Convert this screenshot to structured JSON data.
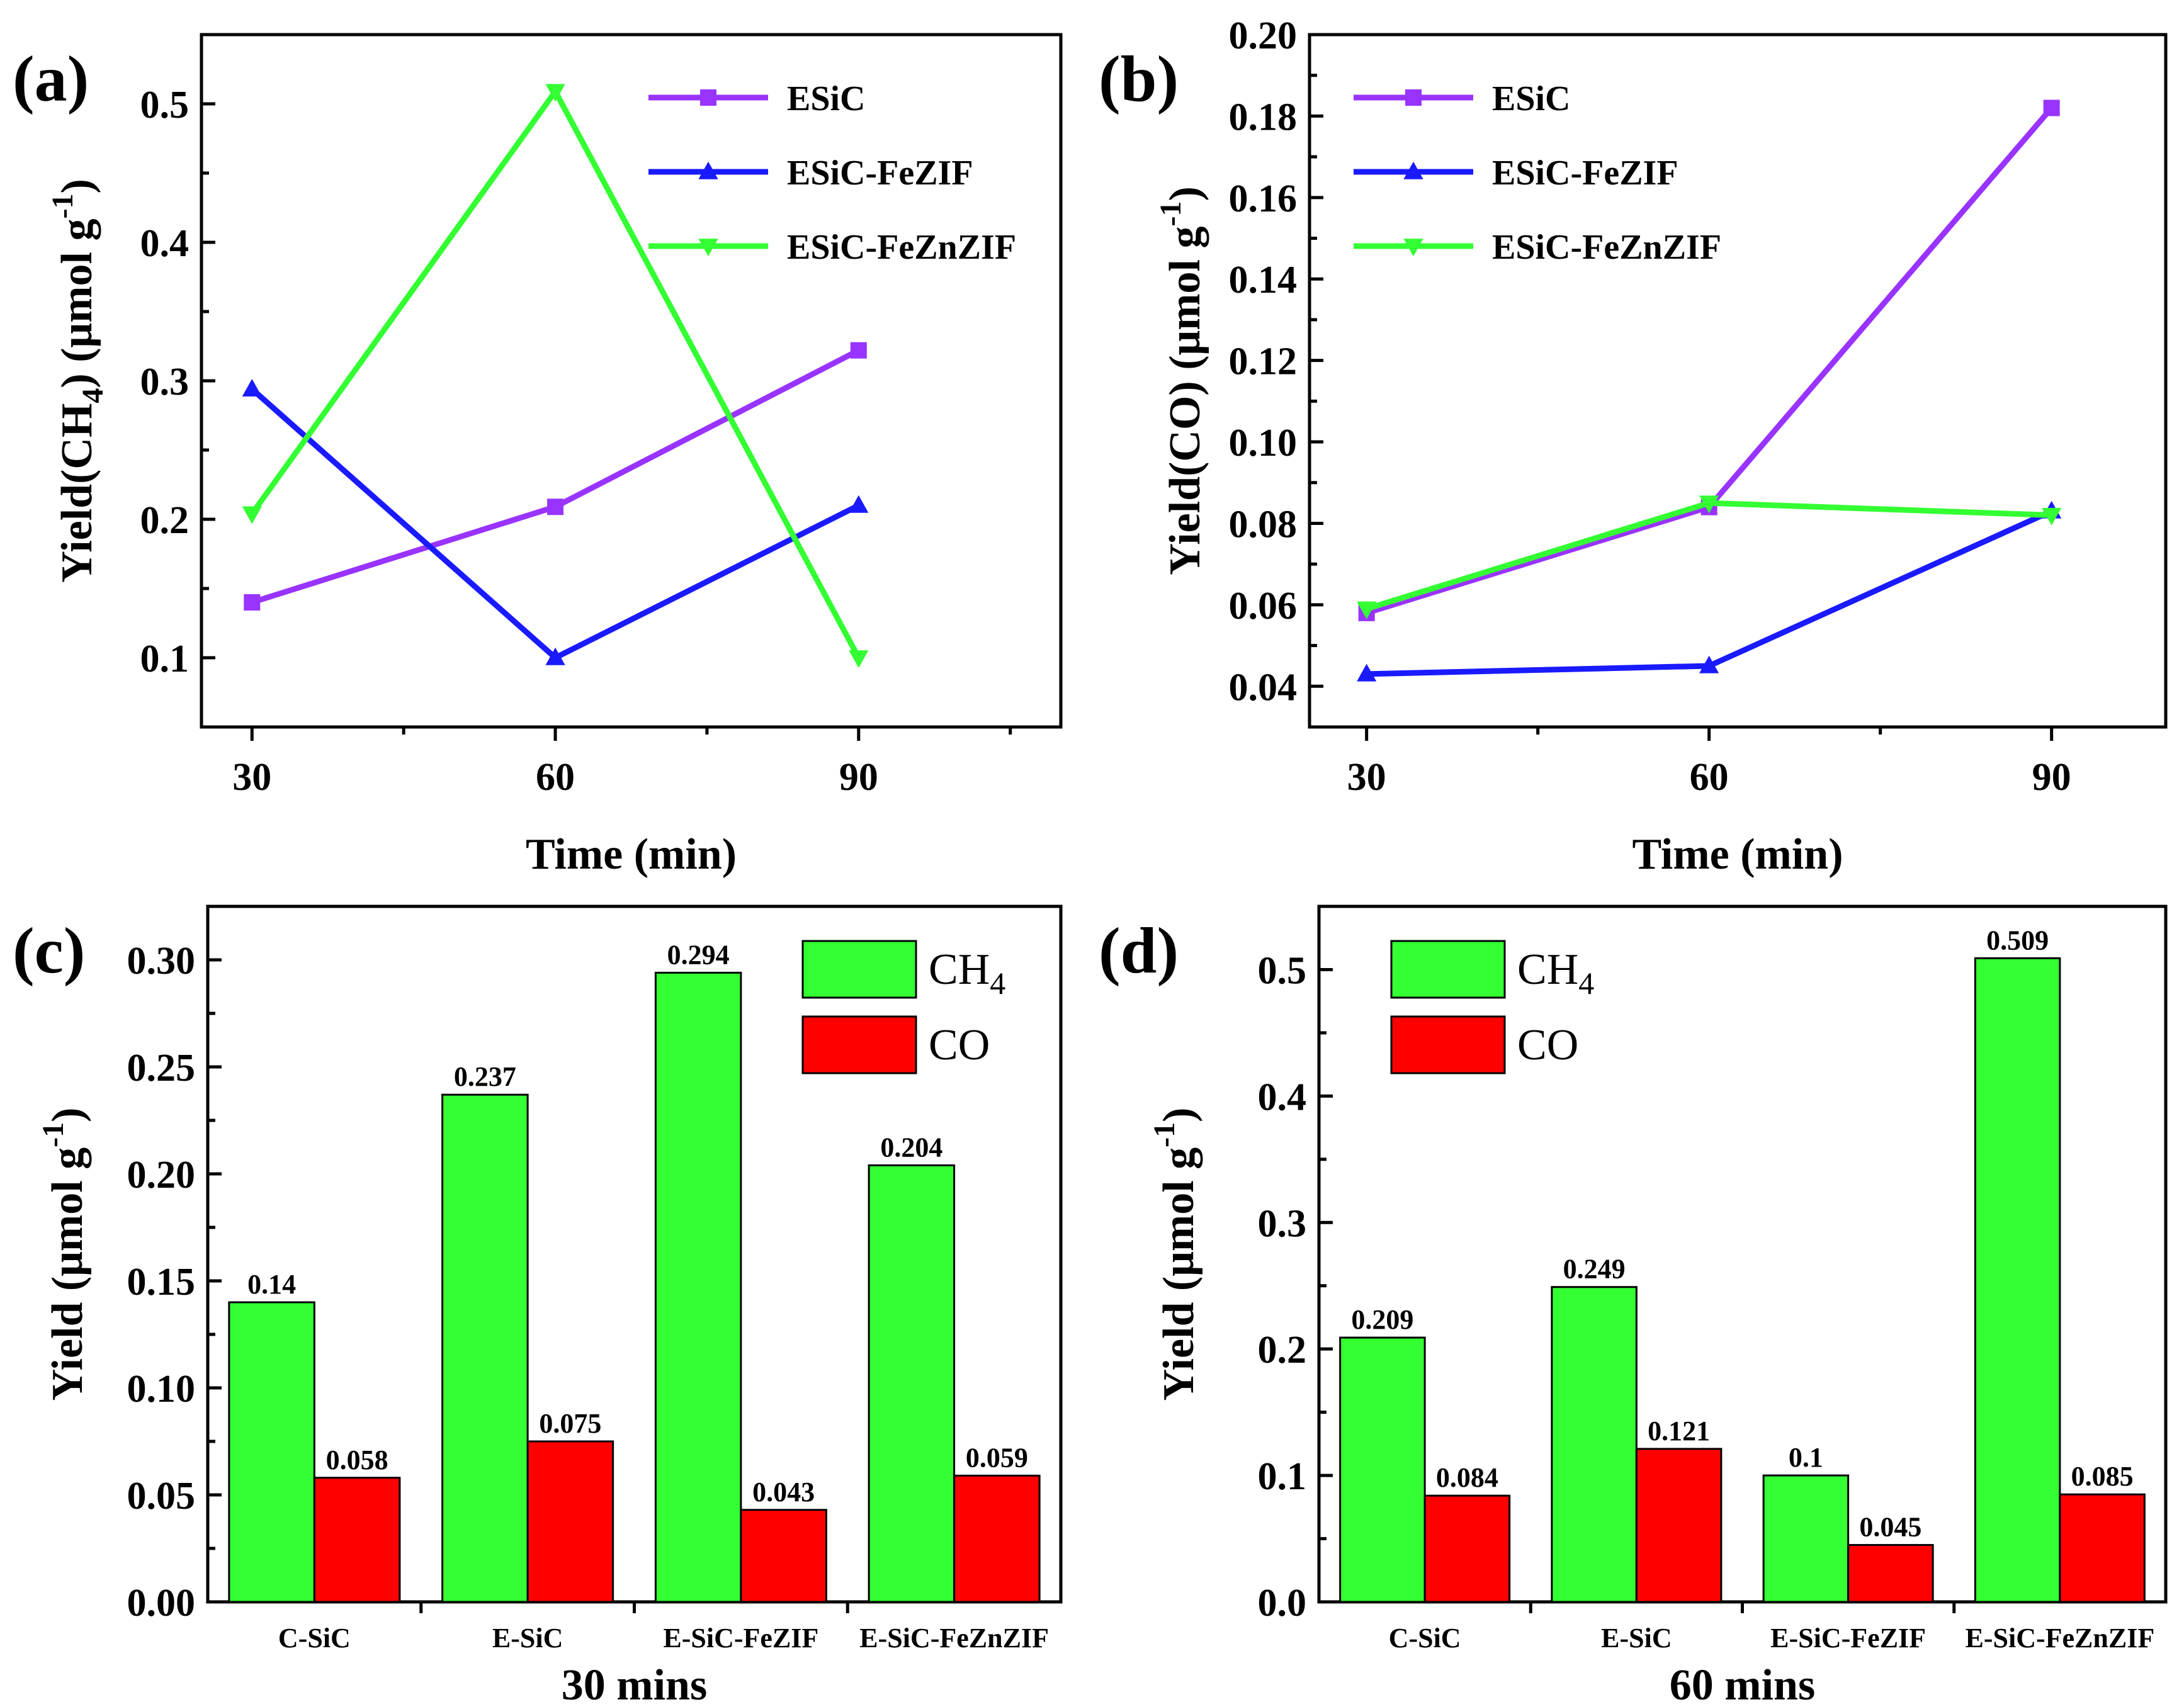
{
  "chart_data": [
    {
      "id": "a",
      "panel_label": "(a)",
      "type": "line",
      "x": [
        30,
        60,
        90
      ],
      "xticks": [
        "30",
        "60",
        "90"
      ],
      "xlim": [
        25,
        110
      ],
      "ylim": [
        0.05,
        0.55
      ],
      "yticks": [
        "0.1",
        "0.2",
        "0.3",
        "0.4",
        "0.5"
      ],
      "ytick_values": [
        0.1,
        0.2,
        0.3,
        0.4,
        0.5
      ],
      "xlabel": "Time (min)",
      "ylabel": {
        "prefix": "Yield(CH",
        "sub": "4",
        "mid": ") (μmol g",
        "sup": "-1",
        "suffix": ")"
      },
      "legend_position": "top-right",
      "series": [
        {
          "name": "ESiC",
          "color": "#9933ff",
          "marker": "square",
          "values": [
            0.14,
            0.209,
            0.322
          ]
        },
        {
          "name": "ESiC-FeZIF",
          "color": "#1a1aff",
          "marker": "triangle-up",
          "values": [
            0.294,
            0.1,
            0.21
          ]
        },
        {
          "name": "ESiC-FeZnZIF",
          "color": "#33ff33",
          "marker": "triangle-down",
          "values": [
            0.204,
            0.509,
            0.1
          ]
        }
      ]
    },
    {
      "id": "b",
      "panel_label": "(b)",
      "type": "line",
      "x": [
        30,
        60,
        90
      ],
      "xticks": [
        "30",
        "60",
        "90"
      ],
      "xlim": [
        25,
        100
      ],
      "ylim": [
        0.03,
        0.2
      ],
      "yticks": [
        "0.04",
        "0.06",
        "0.08",
        "0.10",
        "0.12",
        "0.14",
        "0.16",
        "0.18",
        "0.20"
      ],
      "ytick_values": [
        0.04,
        0.06,
        0.08,
        0.1,
        0.12,
        0.14,
        0.16,
        0.18,
        0.2
      ],
      "xlabel": "Time (min)",
      "ylabel": {
        "prefix": "Yield(CO) (μmol g",
        "sub": "",
        "mid": "",
        "sup": "-1",
        "suffix": ")"
      },
      "legend_position": "top-left",
      "series": [
        {
          "name": "ESiC",
          "color": "#9933ff",
          "marker": "square",
          "values": [
            0.058,
            0.084,
            0.182
          ]
        },
        {
          "name": "ESiC-FeZIF",
          "color": "#1a1aff",
          "marker": "triangle-up",
          "values": [
            0.043,
            0.045,
            0.083
          ]
        },
        {
          "name": "ESiC-FeZnZIF",
          "color": "#33ff33",
          "marker": "triangle-down",
          "values": [
            0.059,
            0.085,
            0.082
          ]
        }
      ]
    },
    {
      "id": "c",
      "panel_label": "(c)",
      "type": "bar",
      "categories": [
        "C-SiC",
        "E-SiC",
        "E-SiC-FeZIF",
        "E-SiC-FeZnZIF"
      ],
      "ylim": [
        0,
        0.325
      ],
      "yticks": [
        "0.00",
        "0.05",
        "0.10",
        "0.15",
        "0.20",
        "0.25",
        "0.30"
      ],
      "ytick_values": [
        0,
        0.05,
        0.1,
        0.15,
        0.2,
        0.25,
        0.3
      ],
      "xlabel": "30 mins",
      "ylabel": {
        "prefix": "Yield (μmol g",
        "sub": "",
        "mid": "",
        "sup": "-1",
        "suffix": ")"
      },
      "legend_position": "top-right",
      "series": [
        {
          "name": "CH",
          "name_sub": "4",
          "color": "#33ff33",
          "values": [
            0.14,
            0.237,
            0.294,
            0.204
          ],
          "labels": [
            "0.14",
            "0.237",
            "0.294",
            "0.204"
          ]
        },
        {
          "name": "CO",
          "name_sub": "",
          "color": "#ff0000",
          "values": [
            0.058,
            0.075,
            0.043,
            0.059
          ],
          "labels": [
            "0.058",
            "0.075",
            "0.043",
            "0.059"
          ]
        }
      ]
    },
    {
      "id": "d",
      "panel_label": "(d)",
      "type": "bar",
      "categories": [
        "C-SiC",
        "E-SiC",
        "E-SiC-FeZIF",
        "E-SiC-FeZnZIF"
      ],
      "ylim": [
        0,
        0.55
      ],
      "yticks": [
        "0.0",
        "0.1",
        "0.2",
        "0.3",
        "0.4",
        "0.5"
      ],
      "ytick_values": [
        0,
        0.1,
        0.2,
        0.3,
        0.4,
        0.5
      ],
      "xlabel": "60 mins",
      "ylabel": {
        "prefix": "Yield (μmol g",
        "sub": "",
        "mid": "",
        "sup": "-1",
        "suffix": ")"
      },
      "legend_position": "top-left",
      "series": [
        {
          "name": "CH",
          "name_sub": "4",
          "color": "#33ff33",
          "values": [
            0.209,
            0.249,
            0.1,
            0.509
          ],
          "labels": [
            "0.209",
            "0.249",
            "0.1",
            "0.509"
          ]
        },
        {
          "name": "CO",
          "name_sub": "",
          "color": "#ff0000",
          "values": [
            0.084,
            0.121,
            0.045,
            0.085
          ],
          "labels": [
            "0.084",
            "0.121",
            "0.045",
            "0.085"
          ]
        }
      ]
    }
  ]
}
